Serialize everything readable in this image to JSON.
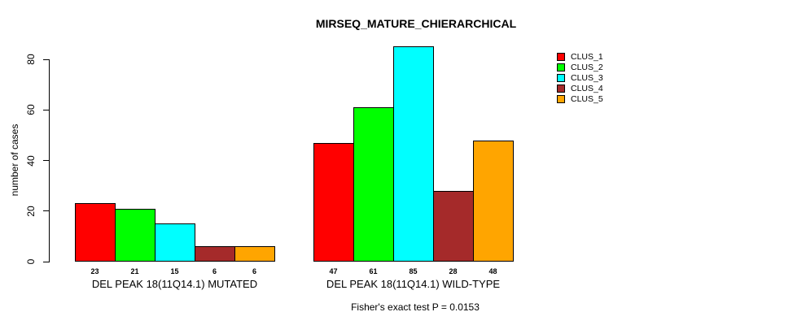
{
  "title": "MIRSEQ_MATURE_CHIERARCHICAL",
  "annotation": "Fisher's exact test P = 0.0153",
  "chart_data": {
    "type": "bar",
    "title": "MIRSEQ_MATURE_CHIERARCHICAL",
    "xlabel": "",
    "ylabel": "number of cases",
    "ylim": [
      0,
      80
    ],
    "yticks": [
      0,
      20,
      40,
      60,
      80
    ],
    "grid": false,
    "legend_position": "right",
    "bar_value_labels": true,
    "categories": [
      "DEL PEAK 18(11Q14.1) MUTATED",
      "DEL PEAK 18(11Q14.1) WILD-TYPE"
    ],
    "series": [
      {
        "name": "CLUS_1",
        "color": "#FF0000",
        "values": [
          23,
          47
        ]
      },
      {
        "name": "CLUS_2",
        "color": "#00FF00",
        "values": [
          21,
          61
        ]
      },
      {
        "name": "CLUS_3",
        "color": "#00FFFF",
        "values": [
          15,
          85
        ]
      },
      {
        "name": "CLUS_4",
        "color": "#A52A2A",
        "values": [
          6,
          28
        ]
      },
      {
        "name": "CLUS_5",
        "color": "#FFA500",
        "values": [
          6,
          48
        ]
      }
    ],
    "annotation": "Fisher's exact test P = 0.0153"
  }
}
